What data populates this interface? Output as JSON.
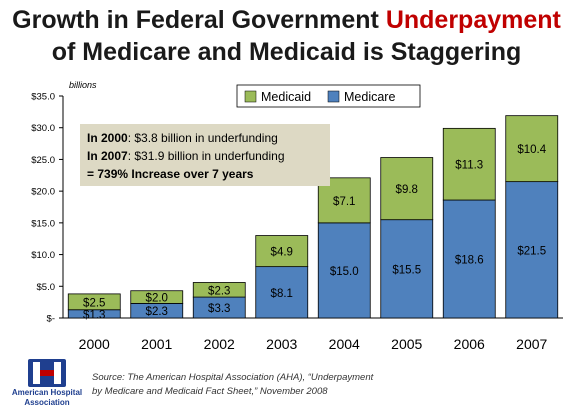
{
  "title": {
    "line1_plain": "Growth in Federal Government ",
    "line1_red": "Underpayment",
    "line2": "of Medicare and Medicaid is Staggering"
  },
  "chart_data": {
    "type": "bar",
    "stacked": true,
    "categories": [
      "2000",
      "2001",
      "2002",
      "2003",
      "2004",
      "2005",
      "2006",
      "2007"
    ],
    "series": [
      {
        "name": "Medicare",
        "color": "#4f81bd",
        "values": [
          1.3,
          2.3,
          3.3,
          8.1,
          15.0,
          15.5,
          18.6,
          21.5
        ],
        "labels": [
          "$1.3",
          "$2.3",
          "$3.3",
          "$8.1",
          "$15.0",
          "$15.5",
          "$18.6",
          "$21.5"
        ]
      },
      {
        "name": "Medicaid",
        "color": "#9bbb59",
        "values": [
          2.5,
          2.0,
          2.3,
          4.9,
          7.1,
          9.8,
          11.3,
          10.4
        ],
        "labels": [
          "$2.5",
          "$2.0",
          "$2.3",
          "$4.9",
          "$7.1",
          "$9.8",
          "$11.3",
          "$10.4"
        ]
      }
    ],
    "ylim": [
      0,
      35
    ],
    "yticks": [
      0,
      5,
      10,
      15,
      20,
      25,
      30,
      35
    ],
    "ytick_labels": [
      "$-",
      "$5.0",
      "$10.0",
      "$15.0",
      "$20.0",
      "$25.0",
      "$30.0",
      "$35.0"
    ],
    "unit_label": "billions",
    "legend_order": [
      "Medicaid",
      "Medicare"
    ],
    "legend_placement": "top-center",
    "grid": false
  },
  "callout": {
    "line1_bold": "In 2000",
    "line1_rest": ": $3.8 billion in underfunding",
    "line2_bold": "In 2007",
    "line2_rest": ": $31.9 billion in underfunding",
    "line3": "= 739% Increase over 7 years"
  },
  "source": {
    "line1": "Source: The American Hospital Association (AHA), “Underpayment",
    "line2": "by Medicare and Medicaid Fact Sheet,” November 2008"
  },
  "logo": {
    "line1": "American Hospital",
    "line2": "Association"
  }
}
